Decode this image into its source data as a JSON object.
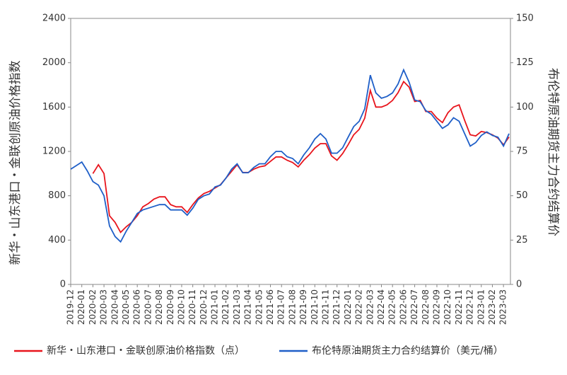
{
  "chart_data": {
    "type": "line",
    "y_label": "新华・山东港口・金联创原油价格指数",
    "y2_label": "布伦特原油期货主力合约结算价",
    "categories": [
      "2019-12",
      null,
      "2020-01",
      null,
      "2020-02",
      null,
      "2020-03",
      null,
      "2020-04",
      null,
      "2020-05",
      null,
      "2020-06",
      null,
      "2020-07",
      null,
      "2020-08",
      null,
      "2020-09",
      null,
      "2020-10",
      null,
      "2020-11",
      null,
      "2020-12",
      null,
      "2021-01",
      null,
      "2021-02",
      null,
      "2021-03",
      null,
      "2021-04",
      null,
      "2021-05",
      null,
      "2021-06",
      null,
      "2021-07",
      null,
      "2021-08",
      null,
      "2021-09",
      null,
      "2021-10",
      null,
      "2021-11",
      null,
      "2021-12",
      null,
      "2022-01",
      null,
      "2022-02",
      null,
      "2022-03",
      null,
      "2022-04",
      null,
      "2022-05",
      null,
      "2022-06",
      null,
      "2022-07",
      null,
      "2022-08",
      null,
      "2022-09",
      null,
      "2022-10",
      null,
      "2022-11",
      null,
      "2022-12",
      null,
      "2023-01",
      null,
      "2023-02",
      null,
      "2023-03",
      null
    ],
    "series": [
      {
        "name": "新华・山东港口・金联创原油价格指数（点）",
        "color": "#e8141c",
        "values": [
          null,
          null,
          null,
          null,
          1000,
          1080,
          1000,
          620,
          560,
          470,
          520,
          560,
          620,
          700,
          730,
          770,
          790,
          790,
          720,
          700,
          700,
          650,
          720,
          780,
          820,
          840,
          870,
          900,
          960,
          1020,
          1080,
          1010,
          1010,
          1040,
          1060,
          1070,
          1110,
          1150,
          1150,
          1120,
          1100,
          1060,
          1120,
          1170,
          1230,
          1270,
          1270,
          1160,
          1120,
          1180,
          1260,
          1350,
          1400,
          1500,
          1750,
          1600,
          1600,
          1620,
          1660,
          1730,
          1830,
          1780,
          1650,
          1660,
          1560,
          1560,
          1500,
          1460,
          1550,
          1600,
          1620,
          1480,
          1350,
          1340,
          1380,
          1370,
          1350,
          1320,
          1260,
          1330
        ]
      },
      {
        "name": "布伦特原油期货主力合约结算价（美元/桶）",
        "color": "#1f5fc8",
        "axis": "y2",
        "values": [
          65,
          67,
          69,
          64,
          58,
          56,
          50,
          33,
          27,
          24,
          30,
          35,
          40,
          42,
          43,
          44,
          45,
          45,
          42,
          42,
          42,
          39,
          43,
          48,
          50,
          51,
          55,
          56,
          60,
          65,
          68,
          63,
          63,
          66,
          68,
          68,
          72,
          75,
          75,
          72,
          71,
          68,
          73,
          77,
          82,
          85,
          82,
          74,
          74,
          77,
          83,
          89,
          92,
          99,
          118,
          108,
          105,
          106,
          108,
          113,
          121,
          114,
          104,
          103,
          98,
          96,
          92,
          88,
          90,
          94,
          92,
          85,
          78,
          80,
          84,
          86,
          84,
          83,
          78,
          85
        ]
      }
    ],
    "ylim": [
      0,
      2400
    ],
    "yticks": [
      0,
      400,
      800,
      1200,
      1600,
      2000,
      2400
    ],
    "y2lim": [
      0,
      150
    ],
    "y2ticks": [
      0,
      25,
      50,
      75,
      100,
      125,
      150
    ]
  }
}
